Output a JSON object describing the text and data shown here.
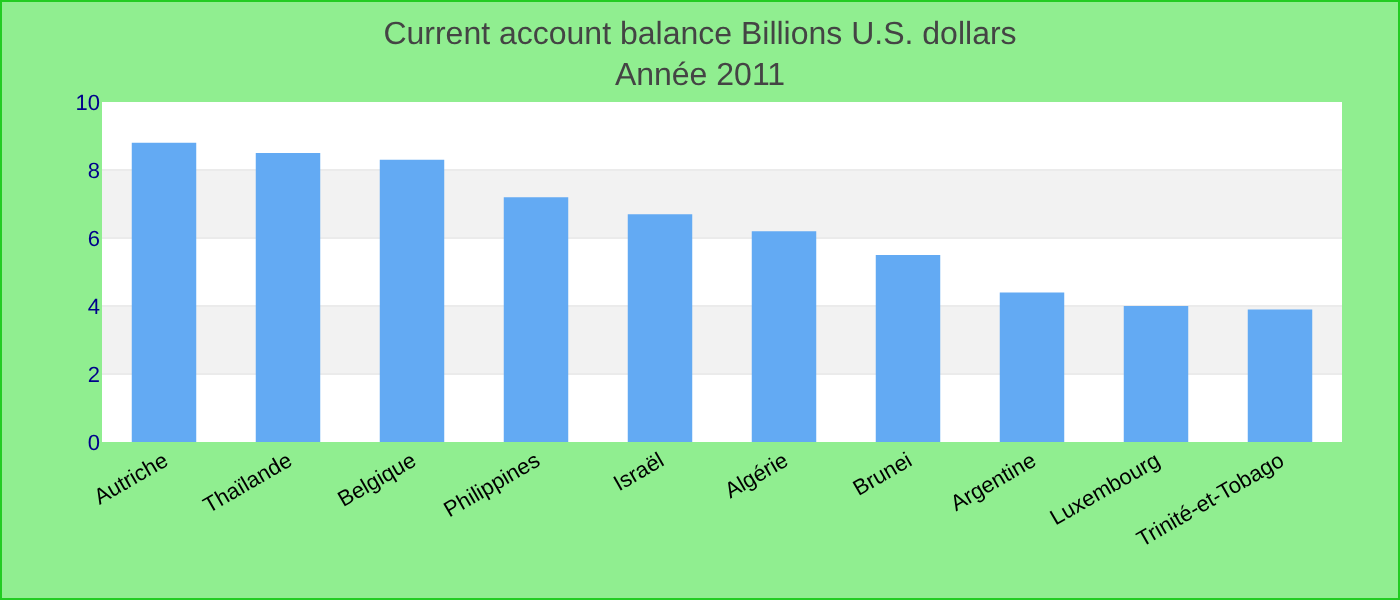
{
  "chart_data": {
    "type": "bar",
    "title": "Current account balance Billions U.S. dollars",
    "subtitle": "Année 2011",
    "categories": [
      "Autriche",
      "Thaïlande",
      "Belgique",
      "Philippines",
      "Israël",
      "Algérie",
      "Brunei",
      "Argentine",
      "Luxembourg",
      "Trinité-et-Tobago"
    ],
    "values": [
      8.8,
      8.5,
      8.3,
      7.2,
      6.7,
      6.2,
      5.5,
      4.4,
      4.0,
      3.9
    ],
    "color": "#63aaf3",
    "ylim": [
      0,
      10
    ],
    "yticks": [
      0,
      2,
      4,
      6,
      8,
      10
    ],
    "grid": true
  }
}
